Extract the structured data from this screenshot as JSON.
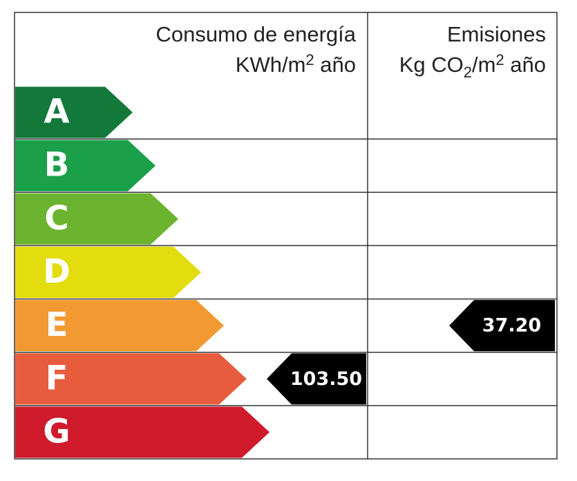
{
  "header": {
    "consumption": {
      "line1": "Consumo de energía",
      "line2": [
        "KWh/m",
        "2",
        " año"
      ]
    },
    "emissions": {
      "line1": "Emisiones",
      "line2": [
        "Kg CO",
        "2",
        "/m",
        "2",
        " año"
      ]
    }
  },
  "ratings": [
    {
      "letter": "A",
      "color": "#12793a"
    },
    {
      "letter": "B",
      "color": "#19a049"
    },
    {
      "letter": "C",
      "color": "#6cb42f"
    },
    {
      "letter": "D",
      "color": "#e3dc0f"
    },
    {
      "letter": "E",
      "color": "#f29a31"
    },
    {
      "letter": "F",
      "color": "#e85c3e"
    },
    {
      "letter": "G",
      "color": "#cf1a2c"
    }
  ],
  "consumption": {
    "value": "103.50",
    "rating": "F"
  },
  "emissions": {
    "value": "37.20",
    "rating": "E"
  }
}
